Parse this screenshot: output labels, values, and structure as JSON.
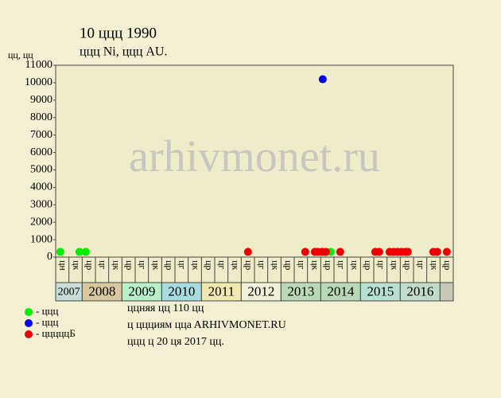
{
  "chart_data": {
    "type": "scatter",
    "title": "10 ццц 1990",
    "subtitle": "ццц Ni, ццц AU.",
    "y_label": "цц, цц",
    "watermark": "arhivmonet.ru",
    "xlim": [
      2007.333,
      2017.333
    ],
    "ylim": [
      0,
      11000
    ],
    "yticks": [
      0,
      1000,
      2000,
      3000,
      4000,
      5000,
      6000,
      7000,
      8000,
      9000,
      10000,
      11000
    ],
    "period_labels": [
      "цн",
      "цк",
      "цр",
      "цг",
      "цк",
      "цр",
      "цг",
      "цк",
      "цр",
      "цг",
      "цк",
      "цр",
      "цг",
      "цк",
      "цр",
      "цг",
      "цк",
      "цр",
      "цг",
      "цк",
      "цр",
      "цг",
      "цк",
      "цр",
      "цг",
      "цк",
      "цр",
      "цг",
      "цк",
      "цр"
    ],
    "years": [
      "2007",
      "2008",
      "2009",
      "2010",
      "2011",
      "2012",
      "2013",
      "2014",
      "2015",
      "2016"
    ],
    "year_colors": [
      "#c8dcd8",
      "#d8c8a0",
      "#b8f0c8",
      "#a8dce0",
      "#f0e8b0",
      "#f0f0d8",
      "#b8d8b8",
      "#b8d8b8",
      "#b8e0d0",
      "#c0dcc8",
      "#c8c8b8"
    ],
    "series": [
      {
        "name": "- ццц",
        "color": "#00ee00",
        "x": [
          2007.45,
          2007.93,
          2008.09,
          2014.25
        ],
        "values": [
          300,
          300,
          300,
          300
        ]
      },
      {
        "name": "- ццц",
        "color": "#0000ee",
        "x": [
          2014.05
        ],
        "values": [
          10200
        ]
      },
      {
        "name": "- цццццБ",
        "color": "#ee0000",
        "x": [
          2012.17,
          2013.61,
          2013.85,
          2013.93,
          2014.03,
          2014.13,
          2014.49,
          2015.37,
          2015.47,
          2015.73,
          2015.83,
          2015.93,
          2016.03,
          2016.13,
          2016.19,
          2016.83,
          2016.93,
          2017.17
        ],
        "values": [
          300,
          300,
          300,
          300,
          300,
          300,
          300,
          300,
          300,
          300,
          300,
          300,
          300,
          300,
          300,
          300,
          300,
          300
        ]
      }
    ],
    "notes": [
      "ццняя цц 110 цц",
      "ц ццциям ццa ARHIVMONET.RU",
      "ццц ц 20 ця 2017 цц."
    ]
  }
}
